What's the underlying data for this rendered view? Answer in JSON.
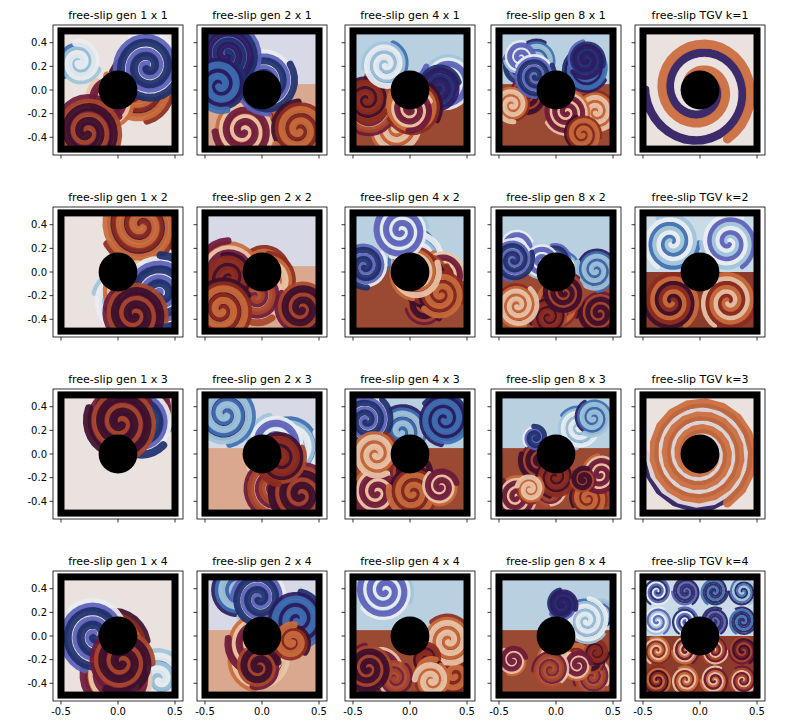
{
  "chart_data": [
    {
      "type": "image",
      "title": "free-slip gen 1 x 1",
      "xlim": [
        -0.57,
        0.57
      ],
      "ylim": [
        -0.55,
        0.55
      ],
      "xticks": [
        -0.5,
        {
          "value": 0,
          "label": "0.0"
        },
        0.5
      ],
      "yticks": [
        -0.4,
        -0.2,
        {
          "value": 0,
          "label": "0.0"
        },
        0.2,
        0.4
      ],
      "tick_labels": "y"
    },
    {
      "type": "image",
      "title": "free-slip gen 2 x 1",
      "xlim": [
        -0.57,
        0.57
      ],
      "ylim": [
        -0.55,
        0.55
      ],
      "xticks": [
        -0.5,
        {
          "value": 0,
          "label": "0.0"
        },
        0.5
      ],
      "yticks": [
        -0.4,
        -0.2,
        {
          "value": 0,
          "label": "0.0"
        },
        0.2,
        0.4
      ],
      "tick_labels": false
    },
    {
      "type": "image",
      "title": "free-slip gen 4 x 1",
      "xlim": [
        -0.57,
        0.57
      ],
      "ylim": [
        -0.55,
        0.55
      ],
      "xticks": [
        -0.5,
        {
          "value": 0,
          "label": "0.0"
        },
        0.5
      ],
      "yticks": [
        -0.4,
        -0.2,
        {
          "value": 0,
          "label": "0.0"
        },
        0.2,
        0.4
      ],
      "tick_labels": false
    },
    {
      "type": "image",
      "title": "free-slip gen 8 x 1",
      "xlim": [
        -0.57,
        0.57
      ],
      "ylim": [
        -0.55,
        0.55
      ],
      "xticks": [
        -0.5,
        {
          "value": 0,
          "label": "0.0"
        },
        0.5
      ],
      "yticks": [
        -0.4,
        -0.2,
        {
          "value": 0,
          "label": "0.0"
        },
        0.2,
        0.4
      ],
      "tick_labels": false
    },
    {
      "type": "image",
      "title": "free-slip TGV k=1",
      "xlim": [
        -0.57,
        0.57
      ],
      "ylim": [
        -0.55,
        0.55
      ],
      "xticks": [
        -0.5,
        {
          "value": 0,
          "label": "0.0"
        },
        0.5
      ],
      "yticks": [
        -0.4,
        -0.2,
        {
          "value": 0,
          "label": "0.0"
        },
        0.2,
        0.4
      ],
      "tick_labels": false
    },
    {
      "type": "image",
      "title": "free-slip gen 1 x 2",
      "xlim": [
        -0.57,
        0.57
      ],
      "ylim": [
        -0.55,
        0.55
      ],
      "xticks": [
        -0.5,
        {
          "value": 0,
          "label": "0.0"
        },
        0.5
      ],
      "yticks": [
        -0.4,
        -0.2,
        {
          "value": 0,
          "label": "0.0"
        },
        0.2,
        0.4
      ],
      "tick_labels": "y"
    },
    {
      "type": "image",
      "title": "free-slip gen 2 x 2",
      "xlim": [
        -0.57,
        0.57
      ],
      "ylim": [
        -0.55,
        0.55
      ],
      "xticks": [
        -0.5,
        {
          "value": 0,
          "label": "0.0"
        },
        0.5
      ],
      "yticks": [
        -0.4,
        -0.2,
        {
          "value": 0,
          "label": "0.0"
        },
        0.2,
        0.4
      ],
      "tick_labels": false
    },
    {
      "type": "image",
      "title": "free-slip gen 4 x 2",
      "xlim": [
        -0.57,
        0.57
      ],
      "ylim": [
        -0.55,
        0.55
      ],
      "xticks": [
        -0.5,
        {
          "value": 0,
          "label": "0.0"
        },
        0.5
      ],
      "yticks": [
        -0.4,
        -0.2,
        {
          "value": 0,
          "label": "0.0"
        },
        0.2,
        0.4
      ],
      "tick_labels": false
    },
    {
      "type": "image",
      "title": "free-slip gen 8 x 2",
      "xlim": [
        -0.57,
        0.57
      ],
      "ylim": [
        -0.55,
        0.55
      ],
      "xticks": [
        -0.5,
        {
          "value": 0,
          "label": "0.0"
        },
        0.5
      ],
      "yticks": [
        -0.4,
        -0.2,
        {
          "value": 0,
          "label": "0.0"
        },
        0.2,
        0.4
      ],
      "tick_labels": false
    },
    {
      "type": "image",
      "title": "free-slip TGV k=2",
      "xlim": [
        -0.57,
        0.57
      ],
      "ylim": [
        -0.55,
        0.55
      ],
      "xticks": [
        -0.5,
        {
          "value": 0,
          "label": "0.0"
        },
        0.5
      ],
      "yticks": [
        -0.4,
        -0.2,
        {
          "value": 0,
          "label": "0.0"
        },
        0.2,
        0.4
      ],
      "tick_labels": false
    },
    {
      "type": "image",
      "title": "free-slip gen 1 x 3",
      "xlim": [
        -0.57,
        0.57
      ],
      "ylim": [
        -0.55,
        0.55
      ],
      "xticks": [
        -0.5,
        {
          "value": 0,
          "label": "0.0"
        },
        0.5
      ],
      "yticks": [
        -0.4,
        -0.2,
        {
          "value": 0,
          "label": "0.0"
        },
        0.2,
        0.4
      ],
      "tick_labels": "y"
    },
    {
      "type": "image",
      "title": "free-slip gen 2 x 3",
      "xlim": [
        -0.57,
        0.57
      ],
      "ylim": [
        -0.55,
        0.55
      ],
      "xticks": [
        -0.5,
        {
          "value": 0,
          "label": "0.0"
        },
        0.5
      ],
      "yticks": [
        -0.4,
        -0.2,
        {
          "value": 0,
          "label": "0.0"
        },
        0.2,
        0.4
      ],
      "tick_labels": false
    },
    {
      "type": "image",
      "title": "free-slip gen 4 x 3",
      "xlim": [
        -0.57,
        0.57
      ],
      "ylim": [
        -0.55,
        0.55
      ],
      "xticks": [
        -0.5,
        {
          "value": 0,
          "label": "0.0"
        },
        0.5
      ],
      "yticks": [
        -0.4,
        -0.2,
        {
          "value": 0,
          "label": "0.0"
        },
        0.2,
        0.4
      ],
      "tick_labels": false
    },
    {
      "type": "image",
      "title": "free-slip gen 8 x 3",
      "xlim": [
        -0.57,
        0.57
      ],
      "ylim": [
        -0.55,
        0.55
      ],
      "xticks": [
        -0.5,
        {
          "value": 0,
          "label": "0.0"
        },
        0.5
      ],
      "yticks": [
        -0.4,
        -0.2,
        {
          "value": 0,
          "label": "0.0"
        },
        0.2,
        0.4
      ],
      "tick_labels": false
    },
    {
      "type": "image",
      "title": "free-slip TGV k=3",
      "xlim": [
        -0.57,
        0.57
      ],
      "ylim": [
        -0.55,
        0.55
      ],
      "xticks": [
        -0.5,
        {
          "value": 0,
          "label": "0.0"
        },
        0.5
      ],
      "yticks": [
        -0.4,
        -0.2,
        {
          "value": 0,
          "label": "0.0"
        },
        0.2,
        0.4
      ],
      "tick_labels": false
    },
    {
      "type": "image",
      "title": "free-slip gen 1 x 4",
      "xlim": [
        -0.57,
        0.57
      ],
      "ylim": [
        -0.55,
        0.55
      ],
      "xticks": [
        -0.5,
        {
          "value": 0,
          "label": "0.0"
        },
        0.5
      ],
      "yticks": [
        -0.4,
        -0.2,
        {
          "value": 0,
          "label": "0.0"
        },
        0.2,
        0.4
      ],
      "tick_labels": true
    },
    {
      "type": "image",
      "title": "free-slip gen 2 x 4",
      "xlim": [
        -0.57,
        0.57
      ],
      "ylim": [
        -0.55,
        0.55
      ],
      "xticks": [
        -0.5,
        {
          "value": 0,
          "label": "0.0"
        },
        0.5
      ],
      "yticks": [
        -0.4,
        -0.2,
        {
          "value": 0,
          "label": "0.0"
        },
        0.2,
        0.4
      ],
      "tick_labels": "x"
    },
    {
      "type": "image",
      "title": "free-slip gen 4 x 4",
      "xlim": [
        -0.57,
        0.57
      ],
      "ylim": [
        -0.55,
        0.55
      ],
      "xticks": [
        -0.5,
        {
          "value": 0,
          "label": "0.0"
        },
        0.5
      ],
      "yticks": [
        -0.4,
        -0.2,
        {
          "value": 0,
          "label": "0.0"
        },
        0.2,
        0.4
      ],
      "tick_labels": "x"
    },
    {
      "type": "image",
      "title": "free-slip gen 8 x 4",
      "xlim": [
        -0.57,
        0.57
      ],
      "ylim": [
        -0.55,
        0.55
      ],
      "xticks": [
        -0.5,
        {
          "value": 0,
          "label": "0.0"
        },
        0.5
      ],
      "yticks": [
        -0.4,
        -0.2,
        {
          "value": 0,
          "label": "0.0"
        },
        0.2,
        0.4
      ],
      "tick_labels": "x"
    },
    {
      "type": "image",
      "title": "free-slip TGV k=4",
      "xlim": [
        -0.57,
        0.57
      ],
      "ylim": [
        -0.55,
        0.55
      ],
      "xticks": [
        -0.5,
        {
          "value": 0,
          "label": "0.0"
        },
        0.5
      ],
      "yticks": [
        -0.4,
        -0.2,
        {
          "value": 0,
          "label": "0.0"
        },
        0.2,
        0.4
      ],
      "tick_labels": "x"
    }
  ]
}
